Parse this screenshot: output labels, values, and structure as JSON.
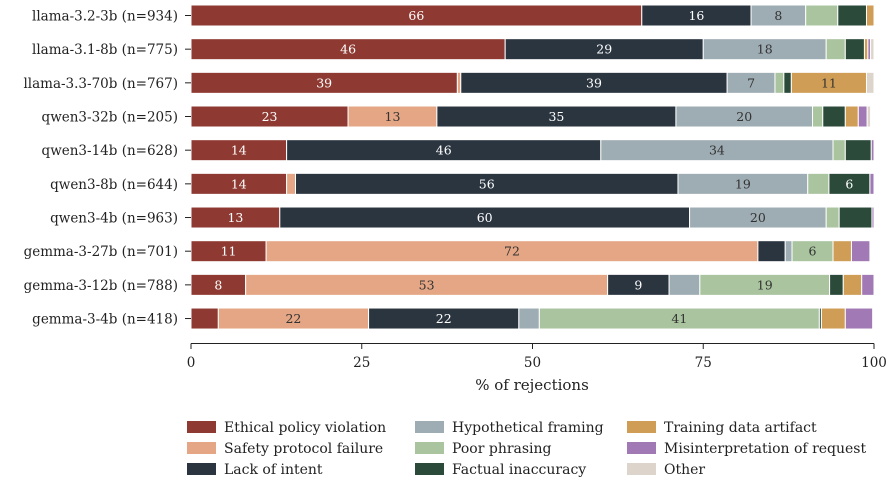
{
  "chart_data": {
    "type": "bar",
    "orientation": "horizontal",
    "stacked": true,
    "categories": [
      "llama-3.2-3b  (n=934)",
      "llama-3.1-8b  (n=775)",
      "llama-3.3-70b  (n=767)",
      "qwen3-32b  (n=205)",
      "qwen3-14b  (n=628)",
      "qwen3-8b  (n=644)",
      "qwen3-4b  (n=963)",
      "gemma-3-27b  (n=701)",
      "gemma-3-12b  (n=788)",
      "gemma-3-4b  (n=418)"
    ],
    "series": [
      {
        "name": "Ethical policy violation",
        "color": "#8e3a32",
        "label_color": "#ffffff",
        "values": [
          66,
          46,
          39,
          23,
          14,
          14,
          13,
          11,
          8,
          4
        ],
        "labels": [
          "66",
          "46",
          "39",
          "23",
          "14",
          "14",
          "13",
          "11",
          "8",
          ""
        ]
      },
      {
        "name": "Safety protocol failure",
        "color": "#e4a684",
        "label_color": "#333333",
        "values": [
          0,
          0,
          0.5,
          13,
          0,
          1.3,
          0,
          72,
          53,
          22
        ],
        "labels": [
          "",
          "",
          "",
          "13",
          "",
          "",
          "",
          "72",
          "53",
          "22"
        ]
      },
      {
        "name": "Lack of intent",
        "color": "#2b3540",
        "label_color": "#ffffff",
        "values": [
          16,
          29,
          39,
          35,
          46,
          56,
          60,
          4,
          9,
          22
        ],
        "labels": [
          "16",
          "29",
          "39",
          "35",
          "46",
          "56",
          "60",
          "",
          "9",
          "22"
        ]
      },
      {
        "name": "Hypothetical framing",
        "color": "#9eacb3",
        "label_color": "#333333",
        "values": [
          8,
          18,
          7,
          20,
          34,
          19,
          20,
          1,
          4.5,
          3
        ],
        "labels": [
          "8",
          "18",
          "7",
          "20",
          "34",
          "19",
          "20",
          "",
          "",
          ""
        ]
      },
      {
        "name": "Poor phrasing",
        "color": "#a9c49f",
        "label_color": "#333333",
        "values": [
          4.7,
          2.8,
          1.3,
          1.5,
          1.8,
          3.1,
          1.9,
          6,
          19,
          41
        ],
        "labels": [
          "",
          "",
          "",
          "",
          "",
          "",
          "",
          "6",
          "19",
          "41"
        ]
      },
      {
        "name": "Factual inaccuracy",
        "color": "#2b4a3a",
        "label_color": "#ffffff",
        "values": [
          4.2,
          2.8,
          1.1,
          3.3,
          3.8,
          6,
          4.8,
          0,
          2,
          0.3
        ],
        "labels": [
          "",
          "",
          "",
          "",
          "",
          "6",
          "",
          "",
          "",
          ""
        ]
      },
      {
        "name": "Training data artifact",
        "color": "#cf9d55",
        "label_color": "#333333",
        "values": [
          1.1,
          0.5,
          11,
          1.9,
          0,
          0,
          0,
          2.7,
          2.7,
          3.5
        ],
        "labels": [
          "",
          "",
          "11",
          "",
          "",
          "",
          "",
          "",
          "",
          ""
        ]
      },
      {
        "name": "Misinterpretation of request",
        "color": "#a17ab5",
        "label_color": "#ffffff",
        "values": [
          0,
          0.4,
          0,
          1.3,
          0.6,
          0.6,
          0.6,
          2.7,
          2.3,
          4
        ],
        "labels": [
          "",
          "",
          "",
          "",
          "",
          "",
          "",
          "",
          "",
          ""
        ]
      },
      {
        "name": "Other",
        "color": "#ddd4cb",
        "label_color": "#333333",
        "values": [
          1,
          0.5,
          1.1,
          0.5,
          0,
          0,
          0,
          0,
          0,
          0
        ],
        "labels": [
          "",
          "",
          "",
          "",
          "",
          "",
          "",
          "",
          "",
          ""
        ]
      }
    ],
    "xlabel": "% of rejections",
    "xlim": [
      0,
      100
    ],
    "xticks": [
      "0",
      "25",
      "50",
      "75",
      "100"
    ],
    "legend": "bottom",
    "grid": false
  }
}
